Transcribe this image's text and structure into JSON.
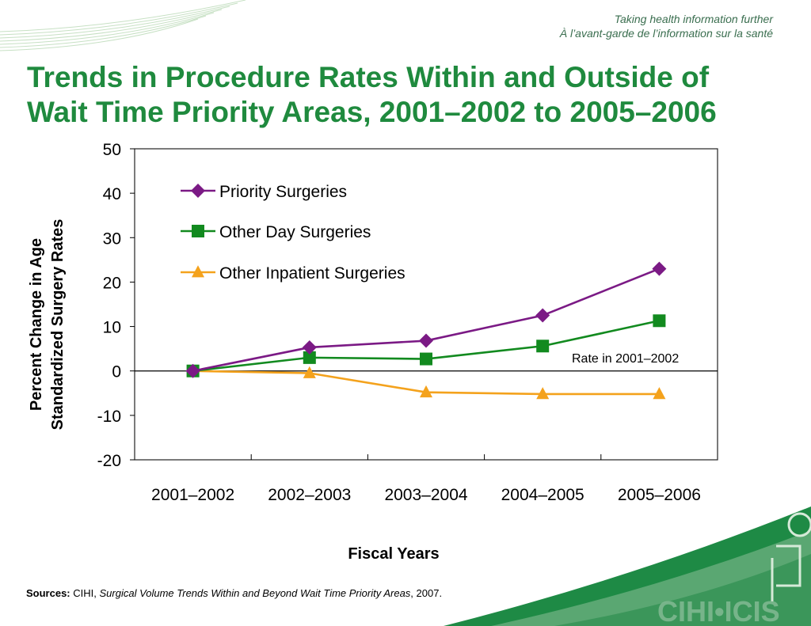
{
  "header": {
    "tagline_en": "Taking health information further",
    "tagline_fr": "À l’avant-garde de l’information sur la santé",
    "title_line1": "Trends in Procedure Rates Within and Outside of",
    "title_line2": "Wait Time Priority Areas, 2001–2002 to 2005–2006"
  },
  "logo": {
    "text": "CIHI•ICIS"
  },
  "chart_data": {
    "type": "line",
    "categories": [
      "2001–2002",
      "2002–2003",
      "2003–2004",
      "2004–2005",
      "2005–2006"
    ],
    "series": [
      {
        "name": "Priority Surgeries",
        "color": "#7b1a85",
        "marker": "diamond",
        "values": [
          0,
          5.3,
          6.8,
          12.5,
          23.0
        ]
      },
      {
        "name": "Other  Day Surgeries",
        "color": "#128a1f",
        "marker": "square",
        "values": [
          0,
          3.0,
          2.7,
          5.6,
          11.3
        ]
      },
      {
        "name": "Other Inpatient Surgeries",
        "color": "#f4a21c",
        "marker": "triangle",
        "values": [
          0,
          -0.5,
          -4.8,
          -5.2,
          -5.2
        ]
      }
    ],
    "ylim": [
      -20,
      50
    ],
    "yticks": [
      "50",
      "40",
      "30",
      "20",
      "10",
      "0",
      "-10",
      "-20"
    ],
    "ylabel_line1": "Percent Change in Age",
    "ylabel_line2": "Standardized Surgery Rates",
    "xlabel": "Fiscal Years",
    "annotation": "Rate in  2001–2002",
    "legend_position": "top-left"
  },
  "footer": {
    "sources_label": "Sources:",
    "sources_org": " CIHI, ",
    "sources_title": "Surgical Volume Trends Within and Beyond Wait Time Priority Areas",
    "sources_year": ", 2007."
  }
}
